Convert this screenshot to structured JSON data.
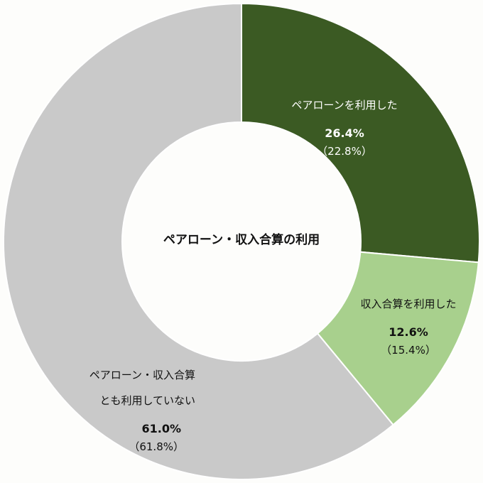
{
  "chart_data": {
    "type": "pie",
    "style": "donut",
    "center_label": "ペアローン・収入合算の利用",
    "slices": [
      {
        "label_lines": [
          "ペアローンを利用した"
        ],
        "value": 26.4,
        "value_text": "26.4%",
        "previous_text": "（22.8%）",
        "color": "#3b5a23",
        "text_color": "#ffffff"
      },
      {
        "label_lines": [
          "収入合算を利用した"
        ],
        "value": 12.6,
        "value_text": "12.6%",
        "previous_text": "（15.4%）",
        "color": "#a8d08d",
        "text_color": "#111111"
      },
      {
        "label_lines": [
          "ペアローン・収入合算",
          "とも利用していない"
        ],
        "value": 61.0,
        "value_text": "61.0%",
        "previous_text": "（61.8%）",
        "color": "#c9c9c9",
        "text_color": "#111111"
      }
    ]
  }
}
